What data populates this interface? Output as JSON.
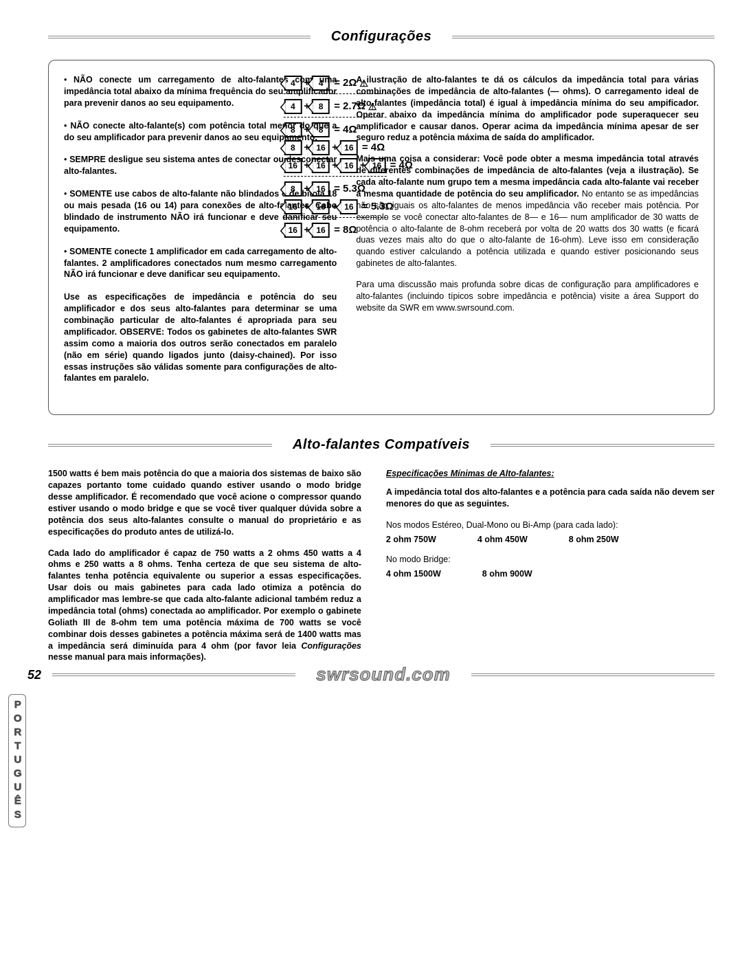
{
  "section1": {
    "title": "Configurações"
  },
  "panel": {
    "left": {
      "b1": "NÃO conecte um carregamento de alto-falantes com uma impedância total abaixo da mínima frequência do seu amplificador para prevenir danos ao seu equipamento.",
      "b2": "NÃO conecte alto-falante(s) com potência total menor do que a do seu amplificador para prevenir danos ao seu equipamento.",
      "b3": "SEMPRE desligue seu sistema antes de conectar ou desconectar alto-falantes.",
      "b4": "SOMENTE use cabos de alto-falante não blindados e de bitola 18 ou mais pesada (16 ou 14) para conexões de alto-falantes. Cabo blindado de instrumento NÃO irá funcionar e deve danificar seu equipamento.",
      "b5": "SOMENTE conecte 1 amplificador em cada carregamento de alto-falantes. 2 amplificadores conectados num mesmo carregamento NÃO irá funcionar e deve danificar seu equipamento.",
      "p1": "Use as especificações de impedância e potência do seu amplificador e dos seus alto-falantes para determinar se uma combinação particular de alto-falantes é apropriada para seu amplificador. OBSERVE: Todos os gabinetes de alto-falantes SWR assim como a maioria dos outros serão conectados em paralelo (não em série) quando ligados junto (daisy-chained). Por isso essas instruções são válidas somente para configurações de alto-falantes em paralelo."
    },
    "right": {
      "p1": "A ilustração de alto-falantes te dá os cálculos da impedância total para várias combinações de impedância de alto-falantes (— ohms). O carregamento ideal de alto-falantes (impedância total) é igual à impedância mínima do seu ampificador. Operar abaixo da impedância mínima do amplificador pode superaquecer seu amplificador e causar danos. Operar acima da impedância mínima apesar de ser seguro reduz a potência máxima de saída do amplificador.",
      "p2": "Mais uma coisa a considerar: Você pode obter a mesma impedância total através de diferentes combinações de impedância de alto-falantes (veja a ilustração). Se cada alto-falante num grupo tem a mesma impedância cada alto-falante vai receber a mesma quantidade de potência do seu amplificador.",
      "p2b": " No entanto se as impedâncias não são iguais os alto-falantes de menos impedância vão receber mais potência. Por exemplo se você conectar alto-falantes de 8— e 16— num amplificador de 30 watts de potência o alto-falante de 8-ohm receberá por volta de 20 watts dos 30 watts (e ficará duas vezes mais alto do que o alto-falante de 16-ohm). Leve isso em consideração quando estiver calculando a potência utilizada e quando estiver posicionando seus gabinetes de alto-falantes.",
      "p3a": "Para uma discussão mais profunda sobre dicas de configuração para amplificadores e alto-falantes (incluindo típicos sobre impedância e potência) visite a área ",
      "p3b": "Support",
      "p3c": " do website da SWR em www.swrsound.com."
    },
    "imp": {
      "r1": {
        "a": "4",
        "b": "4",
        "eq": "= 2Ω",
        "warn": "⚠"
      },
      "r2": {
        "a": "4",
        "b": "8",
        "eq": "= 2.7Ω",
        "warn": "⚠"
      },
      "r3": {
        "a": "8",
        "b": "8",
        "eq": "= 4Ω"
      },
      "r4": {
        "a": "8",
        "b": "16",
        "c": "16",
        "eq": "= 4Ω"
      },
      "r5": {
        "a": "16",
        "b": "16",
        "c": "16",
        "d": "16",
        "eq": "= 4Ω"
      },
      "r6": {
        "a": "8",
        "b": "16",
        "eq": "= 5.3Ω"
      },
      "r7": {
        "a": "16",
        "b": "16",
        "c": "16",
        "eq": "= 5.3Ω"
      },
      "r8": {
        "a": "16",
        "b": "16",
        "eq": "= 8Ω"
      }
    }
  },
  "section2": {
    "title": "Alto-falantes Compatíveis"
  },
  "lower": {
    "left": {
      "p1": "1500 watts é bem mais potência do que a maioria dos sistemas de baixo são capazes portanto tome cuidado quando estiver usando o modo bridge desse amplificador. É recomendado que você acione o compressor quando estiver usando o modo bridge e que se você tiver qualquer dúvida sobre a potência dos seus alto-falantes consulte o manual do proprietário e as especificações do produto antes de utilizá-lo.",
      "p2a": "Cada lado do amplificador é capaz de 750 watts a 2 ohms 450 watts a 4 ohms e 250 watts a 8 ohms. Tenha certeza de que seu sistema de alto-falantes tenha potência equivalente ou superior a essas especificações. Usar dois ou mais gabinetes para cada lado otimiza a potência do amplificador mas lembre-se que cada alto-falante adicional também reduz a impedância total (ohms) conectada ao amplificador. Por exemplo o gabinete Goliath III de 8-ohm tem uma potência máxima de 700 watts se você combinar dois desses gabinetes a potência máxima será de 1400 watts mas a impedância será diminuída para 4 ohm (por favor leia ",
      "p2b": "Configurações",
      "p2c": " nesse manual para mais informações)."
    },
    "right": {
      "subhead": "Especificações Mínimas de Alto-falantes:",
      "p1": "A impedância total dos alto-falantes e a potência para cada saída não devem ser menores do que as seguintes.",
      "mode1": "Nos modos Estéreo, Dual-Mono ou Bi-Amp (para cada lado):",
      "s1a": "2 ohm 750W",
      "s1b": "4 ohm 450W",
      "s1c": "8 ohm 250W",
      "mode2": "No modo Bridge:",
      "s2a": "4 ohm 1500W",
      "s2b": "8 ohm 900W"
    }
  },
  "langtab": "PORTUGUÊS",
  "footer": {
    "page": "52",
    "site": "swrsound.com"
  }
}
